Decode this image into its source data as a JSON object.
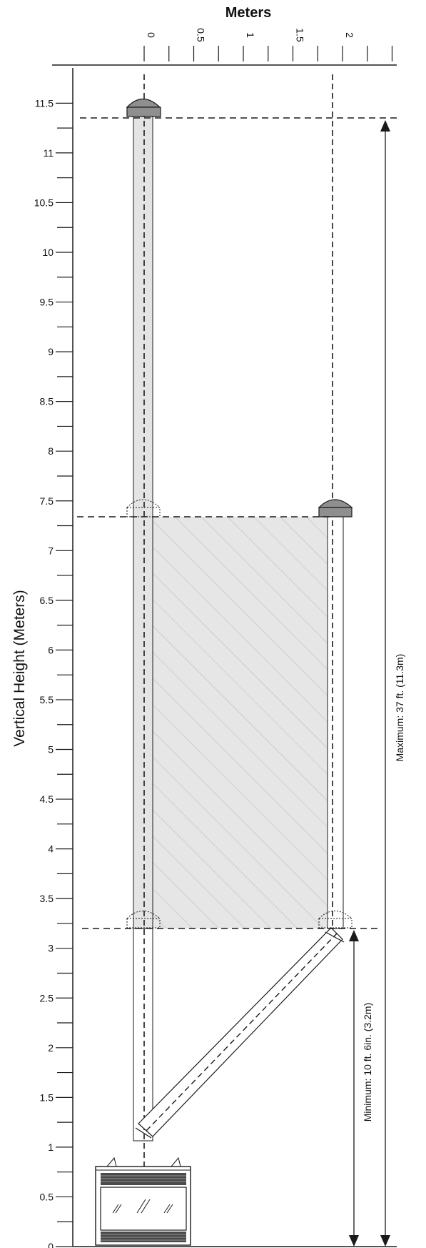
{
  "top_axis": {
    "title": "Meters",
    "ticks": [
      {
        "value": 0,
        "label": "0"
      },
      {
        "value": 0.5,
        "label": "0.5"
      },
      {
        "value": 1,
        "label": "1"
      },
      {
        "value": 1.5,
        "label": "1.5"
      },
      {
        "value": 2,
        "label": "2"
      }
    ],
    "minor_step": 0.25,
    "max": 2.5
  },
  "left_axis": {
    "title": "Vertical Height (Meters)",
    "ticks": [
      "0",
      "0.5",
      "1",
      "1.5",
      "2",
      "2.5",
      "3",
      "3.5",
      "4",
      "4.5",
      "5",
      "5.5",
      "6",
      "6.5",
      "7",
      "7.5",
      "8",
      "8.5",
      "9",
      "9.5",
      "10",
      "10.5",
      "11",
      "11.5"
    ],
    "minor_step": 0.25,
    "max": 11.5
  },
  "dimensions": {
    "maximum_label": "Maximum: 37 ft. (11.3m)",
    "minimum_label": "Minimum: 10 ft. 6in. (3.2m)",
    "maximum_m": 11.3,
    "minimum_m": 3.2,
    "offset_min_height_m": 7.35
  },
  "colors": {
    "pipe_fill": "#e4e4e4",
    "shade_fill": "#e6e6e6",
    "cap_fill": "#8f8f8f",
    "line": "#1a1a1a"
  }
}
